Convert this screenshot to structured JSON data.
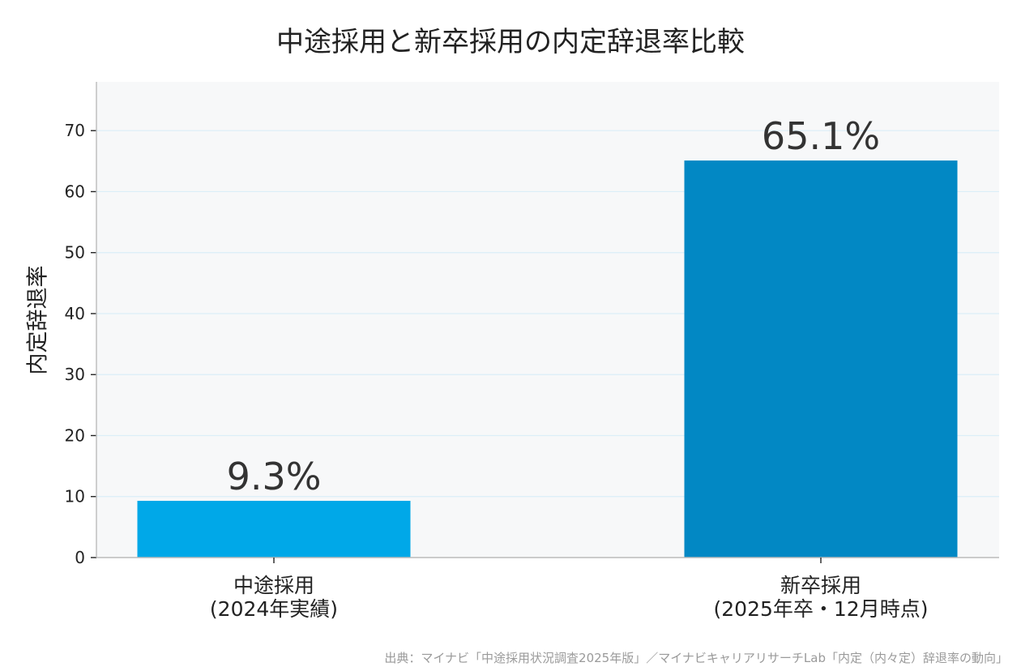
{
  "chart_data": {
    "type": "bar",
    "title": "中途採用と新卒採用の内定辞退率比較",
    "xlabel": "",
    "ylabel": "内定辞退率",
    "ylim": [
      0,
      78
    ],
    "yticks": [
      0,
      10,
      20,
      30,
      40,
      50,
      60,
      70
    ],
    "grid": true,
    "categories": [
      [
        "中途採用",
        "(2024年実績)"
      ],
      [
        "新卒採用",
        "(2025年卒・12月時点)"
      ]
    ],
    "values": [
      9.3,
      65.1
    ],
    "data_labels": [
      "9.3%",
      "65.1%"
    ],
    "colors": [
      "#00A8E8",
      "#0288C4"
    ],
    "source": "出典：マイナビ「中途採用状況調査2025年版」／マイナビキャリアリサーチLab「内定（内々定）辞退率の動向」"
  }
}
